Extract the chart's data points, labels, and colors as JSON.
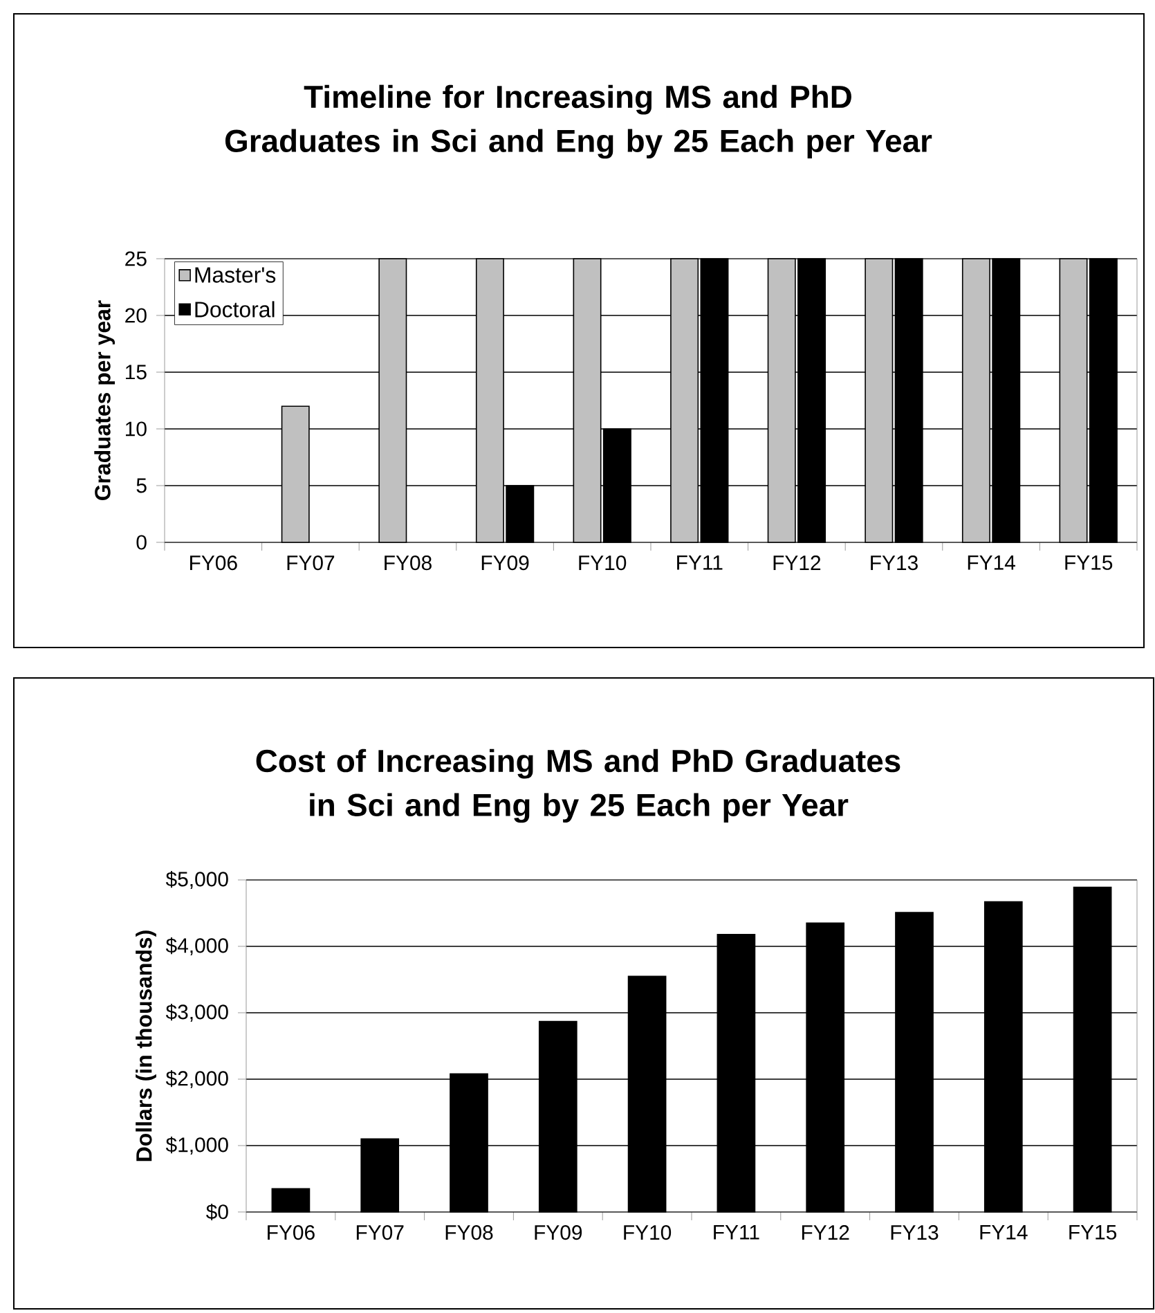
{
  "chart_data": [
    {
      "type": "bar",
      "title": "Timeline for Increasing MS and PhD Graduates in Sci and Eng by 25 Each per Year",
      "ylabel": "Graduates per year",
      "categories": [
        "FY06",
        "FY07",
        "FY08",
        "FY09",
        "FY10",
        "FY11",
        "FY12",
        "FY13",
        "FY14",
        "FY15"
      ],
      "series": [
        {
          "name": "Master's",
          "color": "#c0c0c0",
          "values": [
            0,
            12,
            25,
            25,
            25,
            25,
            25,
            25,
            25,
            25
          ]
        },
        {
          "name": "Doctoral",
          "color": "#000000",
          "values": [
            0,
            0,
            0,
            5,
            10,
            25,
            25,
            25,
            25,
            25
          ]
        }
      ],
      "ylim": [
        0,
        25
      ],
      "yticks": [
        0,
        5,
        10,
        15,
        20,
        25
      ],
      "grid": "y",
      "legend": "top left"
    },
    {
      "type": "bar",
      "title": "Cost of Increasing MS and PhD Graduates in Sci and Eng by 25 Each per Year",
      "ylabel": "Dollars (in thousands)",
      "categories": [
        "FY06",
        "FY07",
        "FY08",
        "FY09",
        "FY10",
        "FY11",
        "FY12",
        "FY13",
        "FY14",
        "FY15"
      ],
      "values": [
        350,
        1100,
        2080,
        2870,
        3550,
        4180,
        4350,
        4510,
        4670,
        4890
      ],
      "color": "#000000",
      "ylim": [
        0,
        5000
      ],
      "yticks": [
        {
          "value": 0,
          "label": "$0"
        },
        {
          "value": 1000,
          "label": "$1,000"
        },
        {
          "value": 2000,
          "label": "$2,000"
        },
        {
          "value": 3000,
          "label": "$3,000"
        },
        {
          "value": 4000,
          "label": "$4,000"
        },
        {
          "value": 5000,
          "label": "$5,000"
        }
      ],
      "grid": "y"
    }
  ]
}
